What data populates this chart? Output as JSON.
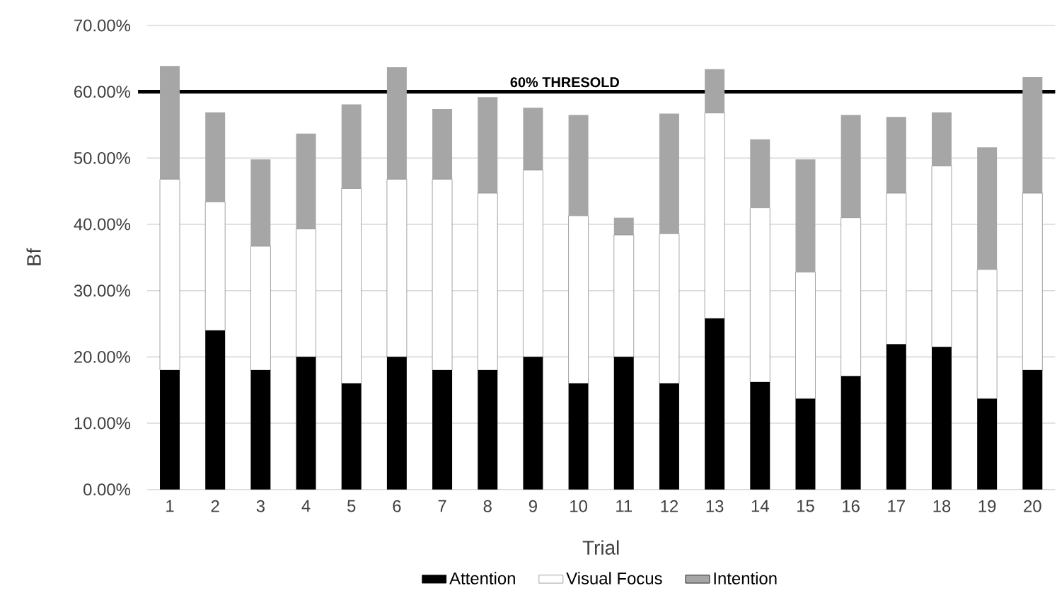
{
  "chart_data": {
    "type": "bar",
    "stacked": true,
    "xlabel": "Trial",
    "ylabel": "Bf",
    "categories": [
      "1",
      "2",
      "3",
      "4",
      "5",
      "6",
      "7",
      "8",
      "9",
      "10",
      "11",
      "12",
      "13",
      "14",
      "15",
      "16",
      "17",
      "18",
      "19",
      "20"
    ],
    "series": [
      {
        "name": "Attention",
        "color": "#000000",
        "values": [
          18,
          24,
          18,
          20,
          16,
          20,
          18,
          18,
          20,
          16,
          20,
          16,
          25.8,
          16.2,
          13.7,
          17.1,
          21.9,
          21.5,
          13.7,
          18
        ]
      },
      {
        "name": "Visual Focus",
        "color": "#ffffff",
        "values": [
          28.8,
          19.4,
          18.7,
          19.3,
          29.4,
          26.8,
          28.8,
          26.7,
          28.2,
          25.3,
          18.4,
          22.6,
          31,
          26.3,
          19.1,
          23.9,
          22.8,
          27.3,
          19.5,
          26.7
        ]
      },
      {
        "name": "Intention",
        "color": "#a6a6a6",
        "values": [
          17.1,
          13.5,
          13.1,
          14.4,
          12.7,
          16.9,
          10.6,
          14.5,
          9.4,
          15.2,
          2.6,
          18.1,
          6.6,
          10.3,
          17,
          15.5,
          11.5,
          8.1,
          18.4,
          17.5
        ]
      }
    ],
    "ylim": [
      0,
      70
    ],
    "yticks": [
      {
        "value": 0,
        "label": "0.00%"
      },
      {
        "value": 10,
        "label": "10.00%"
      },
      {
        "value": 20,
        "label": "20.00%"
      },
      {
        "value": 30,
        "label": "30.00%"
      },
      {
        "value": 40,
        "label": "40.00%"
      },
      {
        "value": 50,
        "label": "50.00%"
      },
      {
        "value": 60,
        "label": "60.00%"
      },
      {
        "value": 70,
        "label": "70.00%"
      }
    ],
    "grid": "y",
    "legend": "bottom",
    "ref_lines": [
      {
        "axis": "y",
        "value": 60,
        "label": "60% THRESOLD",
        "color": "#000000"
      }
    ]
  }
}
